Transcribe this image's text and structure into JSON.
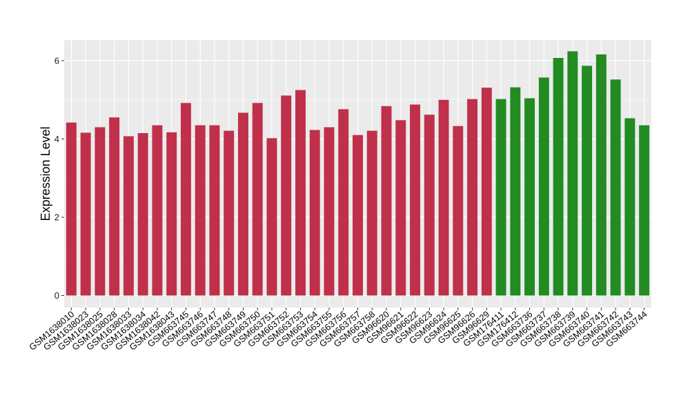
{
  "chart_data": {
    "type": "bar",
    "title": "",
    "xlabel": "",
    "ylabel": "Expression Level",
    "ylim": [
      0,
      6.5
    ],
    "yticks": [
      0,
      2,
      4,
      6
    ],
    "grid": true,
    "legend": "none",
    "colors": {
      "group1": "#c0304b",
      "group2": "#228b22",
      "panel": "#ebebeb",
      "gridline": "#ffffff"
    },
    "categories": [
      "GSM1638010",
      "GSM1638023",
      "GSM1638025",
      "GSM1638028",
      "GSM1638033",
      "GSM1638034",
      "GSM1638042",
      "GSM1638043",
      "GSM663745",
      "GSM663746",
      "GSM663747",
      "GSM663748",
      "GSM663749",
      "GSM663750",
      "GSM663751",
      "GSM663752",
      "GSM663753",
      "GSM663754",
      "GSM663755",
      "GSM663756",
      "GSM663757",
      "GSM663758",
      "GSM96620",
      "GSM96621",
      "GSM96622",
      "GSM96623",
      "GSM96624",
      "GSM96625",
      "GSM96626",
      "GSM96629",
      "GSM176411",
      "GSM176412",
      "GSM663736",
      "GSM663737",
      "GSM663738",
      "GSM663739",
      "GSM663740",
      "GSM663741",
      "GSM663742",
      "GSM663743",
      "GSM663744"
    ],
    "values": [
      4.42,
      4.16,
      4.3,
      4.55,
      4.07,
      4.15,
      4.35,
      4.17,
      4.92,
      4.35,
      4.35,
      4.21,
      4.67,
      4.92,
      4.02,
      5.11,
      5.25,
      4.23,
      4.3,
      4.76,
      4.1,
      4.21,
      4.84,
      4.48,
      4.88,
      4.62,
      5.0,
      4.33,
      5.02,
      5.31,
      5.02,
      5.32,
      5.04,
      5.57,
      6.07,
      6.24,
      5.87,
      6.16,
      5.52,
      4.53,
      4.35
    ],
    "groups": [
      "group1",
      "group1",
      "group1",
      "group1",
      "group1",
      "group1",
      "group1",
      "group1",
      "group1",
      "group1",
      "group1",
      "group1",
      "group1",
      "group1",
      "group1",
      "group1",
      "group1",
      "group1",
      "group1",
      "group1",
      "group1",
      "group1",
      "group1",
      "group1",
      "group1",
      "group1",
      "group1",
      "group1",
      "group1",
      "group1",
      "group2",
      "group2",
      "group2",
      "group2",
      "group2",
      "group2",
      "group2",
      "group2",
      "group2",
      "group2",
      "group2"
    ]
  }
}
